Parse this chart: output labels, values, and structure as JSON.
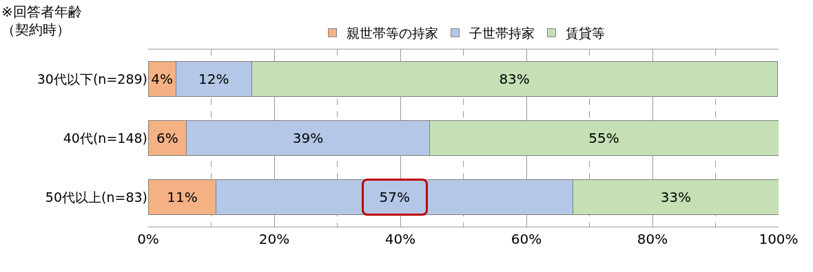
{
  "chart_data": {
    "type": "bar",
    "orientation": "horizontal",
    "stacked": true,
    "ylabel": "※回答者年齢（契約時）",
    "categories": [
      "30代以下(n=289)",
      "40代(n=148)",
      "50代以上(n=83)"
    ],
    "series": [
      {
        "name": "親世帯等の持家",
        "color": "#f4b183",
        "values": [
          4.4,
          6.1,
          10.8
        ],
        "value_labels": [
          "4%",
          "6%",
          "11%"
        ]
      },
      {
        "name": "子世帯持家",
        "color": "#b4c7e7",
        "values": [
          12.0,
          38.5,
          56.6
        ],
        "value_labels": [
          "12%",
          "39%",
          "57%"
        ]
      },
      {
        "name": "賃貸等",
        "color": "#c5e0b4",
        "values": [
          83.4,
          55.4,
          32.6
        ],
        "value_labels": [
          "83%",
          "55%",
          "33%"
        ]
      }
    ],
    "xlim": [
      0,
      100
    ],
    "xticks": [
      {
        "value": 0,
        "label": "0%"
      },
      {
        "value": 10,
        "label": null
      },
      {
        "value": 20,
        "label": "20%"
      },
      {
        "value": 30,
        "label": null
      },
      {
        "value": 40,
        "label": "40%"
      },
      {
        "value": 50,
        "label": null
      },
      {
        "value": 60,
        "label": "60%"
      },
      {
        "value": 70,
        "label": null
      },
      {
        "value": 80,
        "label": "80%"
      },
      {
        "value": 90,
        "label": null
      },
      {
        "value": 100,
        "label": "100%"
      }
    ],
    "grid": "x",
    "legend": "top"
  }
}
